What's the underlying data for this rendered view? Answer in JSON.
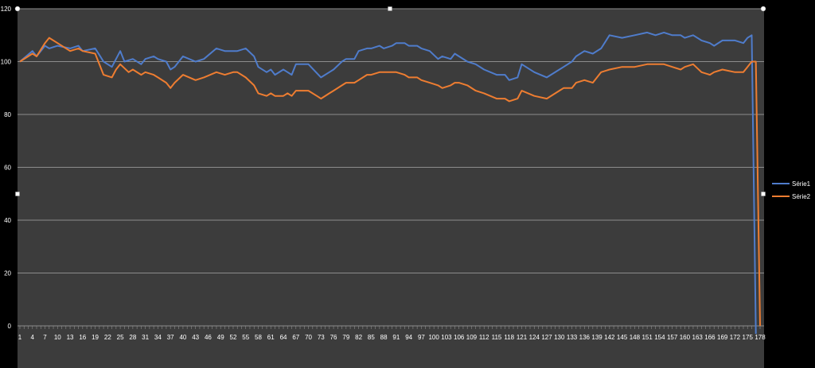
{
  "colors": {
    "background": "#000000",
    "plot_area": "#3c3c3c",
    "grid": "#8c8c8c",
    "series1": "#4f7ccb",
    "series2": "#ee7d31",
    "text": "#ffffff"
  },
  "chart_data": {
    "type": "line",
    "title": "",
    "xlabel": "",
    "ylabel": "",
    "ylim": [
      0,
      120
    ],
    "yticks": [
      0,
      20,
      40,
      60,
      80,
      100,
      120
    ],
    "xlim": [
      1,
      178
    ],
    "xticks": [
      1,
      4,
      7,
      10,
      13,
      16,
      19,
      22,
      25,
      28,
      31,
      34,
      37,
      40,
      43,
      46,
      49,
      52,
      55,
      58,
      61,
      64,
      67,
      70,
      73,
      76,
      79,
      82,
      85,
      88,
      91,
      94,
      97,
      100,
      103,
      106,
      109,
      112,
      115,
      118,
      121,
      124,
      127,
      130,
      133,
      136,
      139,
      142,
      145,
      148,
      151,
      154,
      157,
      160,
      163,
      166,
      169,
      172,
      175,
      178
    ],
    "grid": "horizontal",
    "legend_position": "right",
    "series": [
      {
        "name": "Série1",
        "x": [
          1,
          4,
          5,
          7,
          8,
          10,
          13,
          15,
          16,
          19,
          21,
          23,
          25,
          26,
          28,
          30,
          31,
          33,
          34,
          36,
          37,
          38,
          40,
          43,
          45,
          48,
          50,
          52,
          53,
          55,
          57,
          58,
          60,
          61,
          62,
          64,
          65,
          66,
          67,
          70,
          73,
          75,
          76,
          78,
          79,
          81,
          82,
          84,
          85,
          87,
          88,
          90,
          91,
          93,
          94,
          96,
          97,
          99,
          101,
          102,
          104,
          105,
          106,
          108,
          110,
          112,
          115,
          117,
          118,
          120,
          121,
          124,
          127,
          130,
          131,
          133,
          134,
          136,
          138,
          140,
          142,
          145,
          148,
          151,
          153,
          155,
          157,
          159,
          160,
          162,
          164,
          166,
          167,
          169,
          172,
          174,
          175,
          176,
          177
        ],
        "y": [
          100,
          104,
          102,
          106,
          105,
          106,
          105,
          106,
          104,
          105,
          100,
          98,
          104,
          100,
          101,
          99,
          101,
          102,
          101,
          100,
          97,
          98,
          102,
          100,
          101,
          105,
          104,
          104,
          104,
          105,
          102,
          98,
          96,
          97,
          95,
          97,
          96,
          95,
          99,
          99,
          94,
          96,
          97,
          100,
          101,
          101,
          104,
          105,
          105,
          106,
          105,
          106,
          107,
          107,
          106,
          106,
          105,
          104,
          101,
          102,
          101,
          103,
          102,
          100,
          99,
          97,
          95,
          95,
          93,
          94,
          99,
          96,
          94,
          97,
          98,
          100,
          102,
          104,
          103,
          105,
          110,
          109,
          110,
          111,
          110,
          111,
          110,
          110,
          109,
          110,
          108,
          107,
          106,
          108,
          108,
          107,
          109,
          110,
          -3
        ]
      },
      {
        "name": "Série2",
        "x": [
          1,
          4,
          5,
          7,
          8,
          10,
          13,
          15,
          16,
          19,
          21,
          23,
          24,
          25,
          27,
          28,
          30,
          31,
          33,
          34,
          36,
          37,
          38,
          40,
          43,
          45,
          48,
          50,
          52,
          53,
          55,
          57,
          58,
          60,
          61,
          62,
          64,
          65,
          66,
          67,
          70,
          72,
          73,
          75,
          76,
          78,
          79,
          81,
          82,
          84,
          85,
          87,
          88,
          90,
          91,
          93,
          94,
          96,
          97,
          99,
          101,
          102,
          104,
          105,
          106,
          108,
          110,
          112,
          115,
          117,
          118,
          120,
          121,
          124,
          127,
          130,
          131,
          133,
          134,
          136,
          138,
          140,
          142,
          145,
          148,
          151,
          153,
          155,
          157,
          159,
          160,
          162,
          164,
          166,
          167,
          169,
          172,
          174,
          175,
          176,
          177,
          178
        ],
        "y": [
          100,
          103,
          102,
          107,
          109,
          107,
          104,
          105,
          104,
          103,
          95,
          94,
          97,
          99,
          96,
          97,
          95,
          96,
          95,
          94,
          92,
          90,
          92,
          95,
          93,
          94,
          96,
          95,
          96,
          96,
          94,
          91,
          88,
          87,
          88,
          87,
          87,
          88,
          87,
          89,
          89,
          87,
          86,
          88,
          89,
          91,
          92,
          92,
          93,
          95,
          95,
          96,
          96,
          96,
          96,
          95,
          94,
          94,
          93,
          92,
          91,
          90,
          91,
          92,
          92,
          91,
          89,
          88,
          86,
          86,
          85,
          86,
          89,
          87,
          86,
          89,
          90,
          90,
          92,
          93,
          92,
          96,
          97,
          98,
          98,
          99,
          99,
          99,
          98,
          97,
          98,
          99,
          96,
          95,
          96,
          97,
          96,
          96,
          98,
          100,
          100,
          0
        ]
      }
    ]
  }
}
